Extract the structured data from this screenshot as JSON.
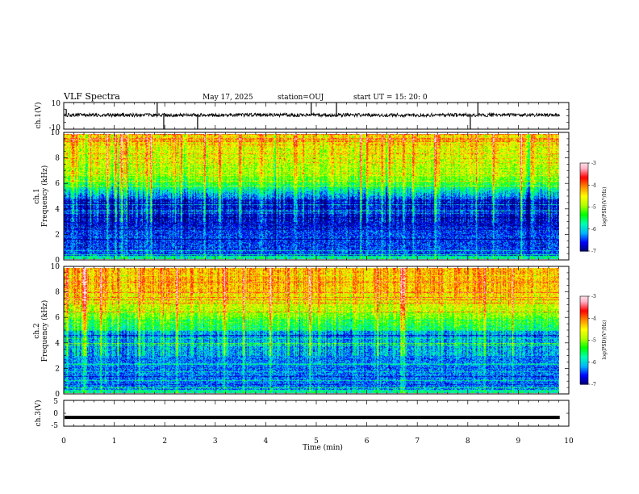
{
  "header": {
    "title": "VLF Spectra",
    "date": "May 17, 2025",
    "station": "station=OUJ",
    "start": "start  UT  =   15: 20: 0"
  },
  "chart_data": [
    {
      "type": "line",
      "ylabel": "ch.1(V)",
      "ylim": [
        -10,
        10
      ],
      "yticks": [
        "10",
        "-10"
      ],
      "baseline": 0,
      "spikes": [
        {
          "x": 1.85,
          "y": 10
        },
        {
          "x": 1.98,
          "y": -10
        },
        {
          "x": 2.65,
          "y": -10
        },
        {
          "x": 4.9,
          "y": 10
        },
        {
          "x": 5.4,
          "y": 10
        },
        {
          "x": 8.05,
          "y": -10
        },
        {
          "x": 8.2,
          "y": 10
        },
        {
          "x": 0.05,
          "y": 5
        }
      ]
    },
    {
      "type": "heatmap",
      "ylabel": "ch.1",
      "ylabel2": "Frequency (kHz)",
      "ylim": [
        0,
        10
      ],
      "yticks": [
        "0",
        "2",
        "4",
        "6",
        "8",
        "10"
      ],
      "colorbar": {
        "label": "log(PSD)(V²/Hz)",
        "ticks": [
          "-3",
          "-4",
          "-5",
          "-6",
          "-7"
        ],
        "range": [
          -7,
          -3
        ]
      }
    },
    {
      "type": "heatmap",
      "ylabel": "ch.2",
      "ylabel2": "Frequency (kHz)",
      "ylim": [
        0,
        10
      ],
      "yticks": [
        "0",
        "2",
        "4",
        "6",
        "8",
        "10"
      ],
      "colorbar": {
        "label": "log(PSD)(V²/Hz)",
        "ticks": [
          "-3",
          "-4",
          "-5",
          "-6",
          "-7"
        ],
        "range": [
          -7,
          -3
        ]
      }
    },
    {
      "type": "line",
      "ylabel": "ch.3(V)",
      "ylim": [
        -5,
        5
      ],
      "yticks": [
        "5",
        "0",
        "-5"
      ],
      "baseline": -1.6
    }
  ],
  "xaxis": {
    "xlabel": "Time (min)",
    "xlim": [
      0,
      10
    ],
    "data_end": 9.82,
    "ticks": [
      "0",
      "1",
      "2",
      "3",
      "4",
      "5",
      "6",
      "7",
      "8",
      "9",
      "10"
    ]
  },
  "colors": {
    "cmap": [
      "#00006e",
      "#0000ff",
      "#00b4ff",
      "#00ffb4",
      "#00ff00",
      "#b4ff00",
      "#ffff00",
      "#ff8c00",
      "#ff0000",
      "#ffb4c8",
      "#ffffff"
    ]
  }
}
